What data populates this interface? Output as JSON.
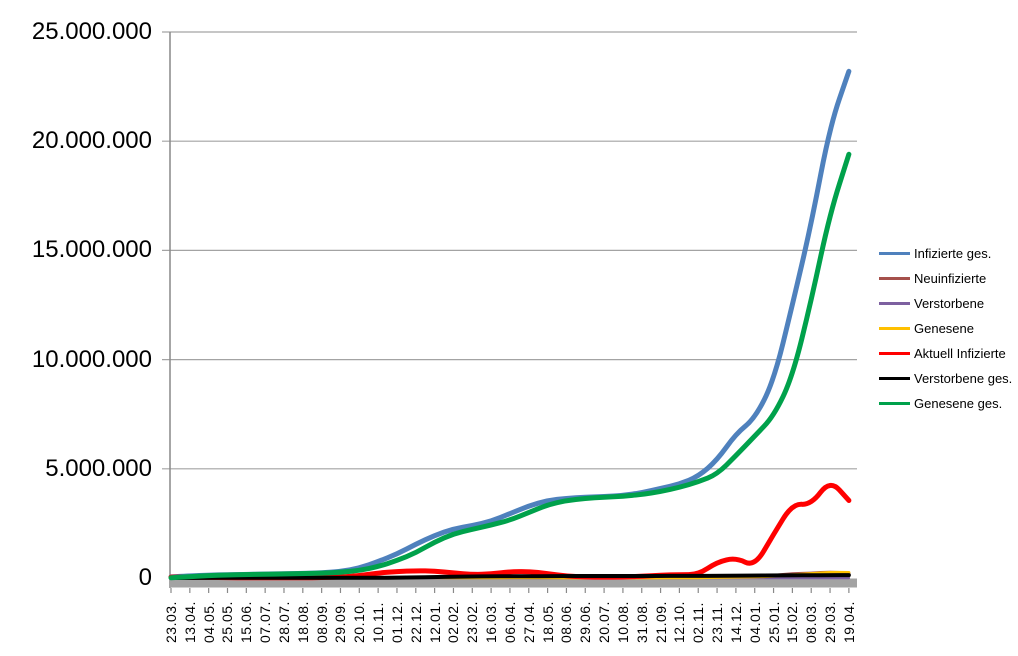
{
  "chart_data": {
    "type": "line",
    "title": "",
    "grid": true,
    "legend_position": "right",
    "ylim": [
      0,
      25000000
    ],
    "y_ticks": [
      "0",
      "5.000.000",
      "10.000.000",
      "15.000.000",
      "20.000.000",
      "25.000.000"
    ],
    "x_labels": [
      "23.03.",
      "13.04.",
      "04.05.",
      "25.05.",
      "15.06.",
      "07.07.",
      "28.07.",
      "18.08.",
      "08.09.",
      "29.09.",
      "20.10.",
      "10.11.",
      "01.12.",
      "22.12.",
      "12.01.",
      "02.02.",
      "23.02.",
      "16.03.",
      "06.04.",
      "27.04.",
      "18.05.",
      "08.06.",
      "29.06.",
      "20.07.",
      "10.08.",
      "31.08.",
      "21.09.",
      "12.10.",
      "02.11.",
      "23.11.",
      "14.12.",
      "04.01.",
      "25.01.",
      "15.02.",
      "08.03.",
      "29.03.",
      "19.04."
    ],
    "series": [
      {
        "name": "Infizierte ges.",
        "color": "#4F81BD",
        "values": [
          50000,
          100000,
          130000,
          150000,
          163000,
          178000,
          193000,
          210000,
          240000,
          300000,
          450000,
          750000,
          1100000,
          1550000,
          1950000,
          2250000,
          2400000,
          2600000,
          2950000,
          3300000,
          3550000,
          3650000,
          3700000,
          3730000,
          3780000,
          3900000,
          4100000,
          4300000,
          4650000,
          5400000,
          6600000,
          7300000,
          9000000,
          12500000,
          16200000,
          20700000,
          23200000
        ]
      },
      {
        "name": "Neuinfizierte",
        "color": "#A5504B",
        "values": [
          3000,
          4000,
          1500,
          800,
          500,
          400,
          500,
          800,
          1500,
          2500,
          8000,
          18000,
          20000,
          25000,
          20000,
          12000,
          8000,
          10000,
          18000,
          20000,
          12000,
          5000,
          1500,
          1000,
          2500,
          8000,
          10000,
          10000,
          18000,
          50000,
          55000,
          40000,
          120000,
          200000,
          220000,
          280000,
          220000
        ]
      },
      {
        "name": "Verstorbene",
        "color": "#7D60A0",
        "values": [
          300,
          500,
          400,
          200,
          100,
          50,
          50,
          50,
          50,
          100,
          200,
          400,
          600,
          800,
          900,
          800,
          600,
          400,
          300,
          300,
          300,
          250,
          150,
          100,
          100,
          150,
          200,
          250,
          300,
          400,
          500,
          500,
          400,
          350,
          350,
          400,
          400
        ]
      },
      {
        "name": "Genesene",
        "color": "#FFC000",
        "values": [
          20000,
          15000,
          5000,
          2000,
          1000,
          800,
          700,
          900,
          1200,
          2000,
          5000,
          12000,
          18000,
          22000,
          22000,
          18000,
          10000,
          9000,
          14000,
          19000,
          15000,
          8000,
          3000,
          1500,
          2000,
          5000,
          8000,
          9000,
          12000,
          30000,
          45000,
          45000,
          80000,
          150000,
          200000,
          260000,
          250000
        ]
      },
      {
        "name": "Aktuell Infizierte",
        "color": "#FF0000",
        "values": [
          40000,
          45000,
          30000,
          20000,
          12000,
          8000,
          9000,
          12000,
          20000,
          40000,
          110000,
          230000,
          300000,
          330000,
          320000,
          230000,
          160000,
          180000,
          290000,
          300000,
          200000,
          90000,
          50000,
          35000,
          45000,
          80000,
          130000,
          150000,
          160000,
          730000,
          930000,
          520000,
          2000000,
          3400000,
          3350000,
          4500000,
          3550000
        ]
      },
      {
        "name": "Verstorbene ges.",
        "color": "#000000",
        "values": [
          500,
          3000,
          7000,
          8500,
          9000,
          9200,
          9400,
          9600,
          9800,
          10000,
          10500,
          12000,
          17000,
          27000,
          42000,
          58000,
          68000,
          74000,
          77500,
          82000,
          86000,
          89000,
          90500,
          91500,
          92000,
          92500,
          93500,
          94500,
          96000,
          100000,
          105000,
          112000,
          117000,
          121000,
          125000,
          129000,
          133000
        ]
      },
      {
        "name": "Genesene ges.",
        "color": "#00A14B",
        "values": [
          10000,
          60000,
          110000,
          140000,
          158000,
          172000,
          186000,
          200000,
          220000,
          260000,
          340000,
          520000,
          800000,
          1150000,
          1650000,
          2020000,
          2230000,
          2420000,
          2650000,
          3000000,
          3350000,
          3550000,
          3640000,
          3700000,
          3740000,
          3820000,
          3960000,
          4150000,
          4400000,
          4750000,
          5600000,
          6500000,
          7400000,
          9200000,
          12700000,
          16700000,
          19400000
        ]
      }
    ]
  }
}
